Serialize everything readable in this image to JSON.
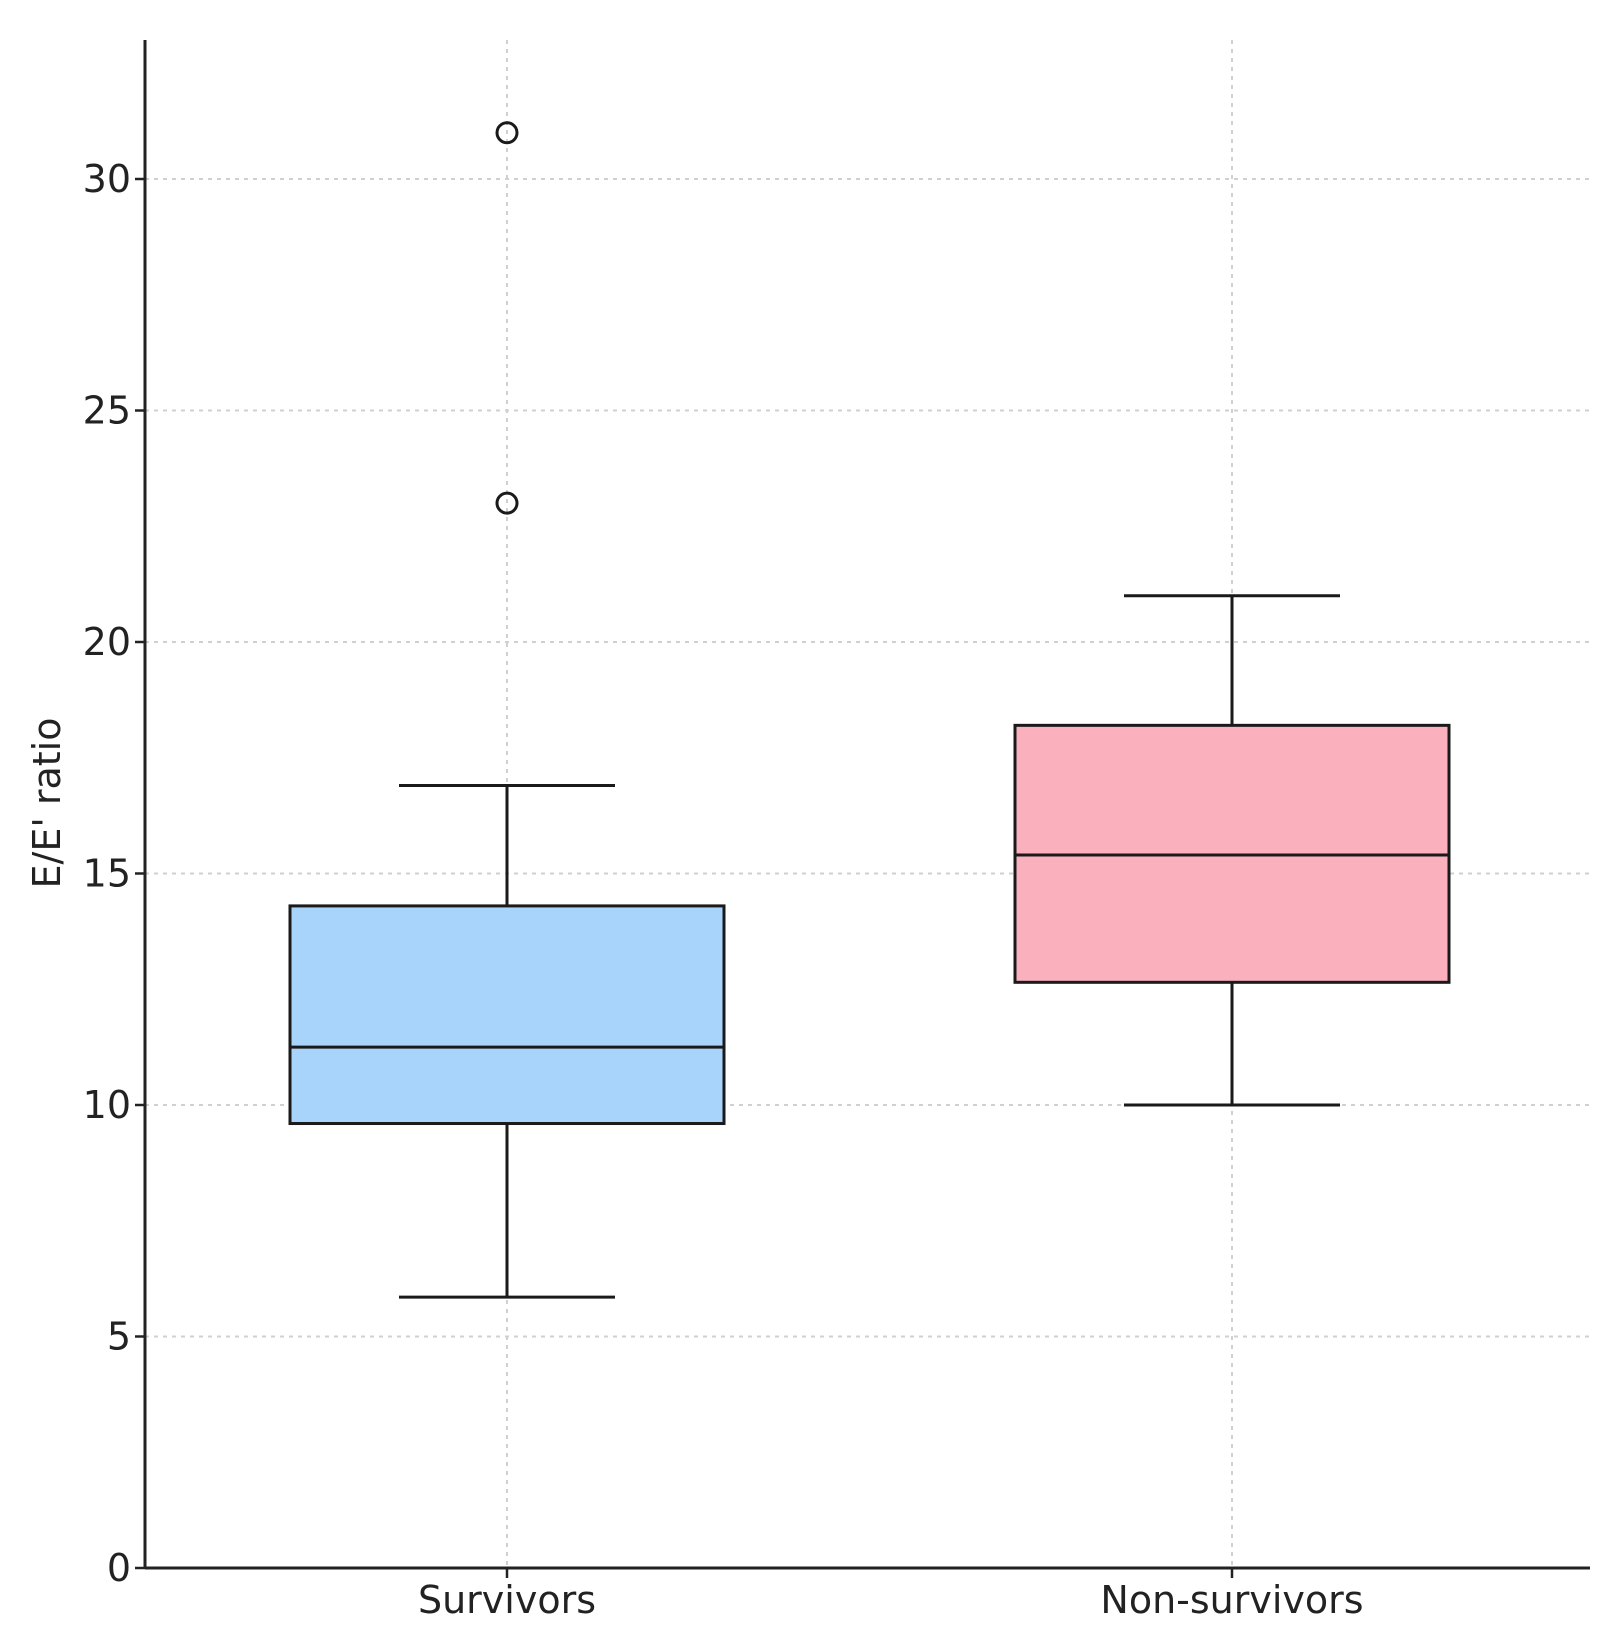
{
  "chart_data": {
    "type": "box",
    "title": "",
    "xlabel": "",
    "ylabel": "E/E' ratio",
    "ylim": [
      0,
      33
    ],
    "yticks": [
      0,
      5,
      10,
      15,
      20,
      25,
      30
    ],
    "grid": true,
    "categories": [
      "Survivors",
      "Non-survivors"
    ],
    "series": [
      {
        "name": "Survivors",
        "color": "#a8d3fb",
        "whisker_low": 5.85,
        "q1": 9.6,
        "median": 11.25,
        "q3": 14.3,
        "whisker_high": 16.9,
        "outliers": [
          23,
          31
        ]
      },
      {
        "name": "Non-survivors",
        "color": "#fbb1bd",
        "whisker_low": 10.0,
        "q1": 12.65,
        "median": 15.4,
        "q3": 18.2,
        "whisker_high": 21.0,
        "outliers": []
      }
    ]
  }
}
